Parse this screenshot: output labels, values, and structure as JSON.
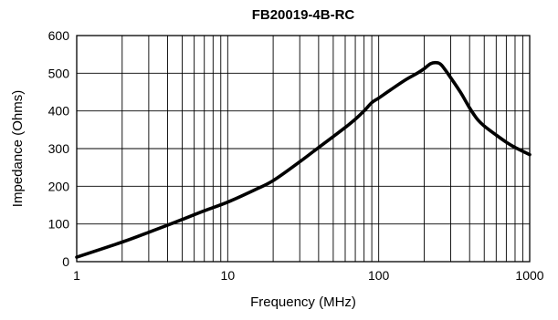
{
  "chart_data": {
    "type": "line",
    "title": "FB20019-4B-RC",
    "xlabel": "Frequency (MHz)",
    "ylabel": "Impedance (Ohms)",
    "x_scale": "log",
    "xlim": [
      1,
      1000
    ],
    "ylim": [
      0,
      600
    ],
    "grid": true,
    "x_ticks": [
      "1",
      "10",
      "100",
      "1000"
    ],
    "y_ticks": [
      "0",
      "100",
      "200",
      "300",
      "400",
      "500",
      "600"
    ],
    "series": [
      {
        "x": [
          1,
          2,
          3,
          4,
          5,
          7,
          10,
          15,
          20,
          30,
          40,
          50,
          60,
          70,
          80,
          90,
          100,
          120,
          150,
          180,
          200,
          220,
          240,
          260,
          300,
          350,
          400,
          450,
          500,
          600,
          700,
          800,
          1000
        ],
        "values": [
          12,
          52,
          78,
          97,
          112,
          135,
          158,
          190,
          215,
          265,
          303,
          332,
          356,
          378,
          400,
          422,
          434,
          456,
          482,
          500,
          512,
          525,
          528,
          522,
          488,
          448,
          408,
          378,
          360,
          336,
          317,
          303,
          284
        ]
      }
    ]
  }
}
